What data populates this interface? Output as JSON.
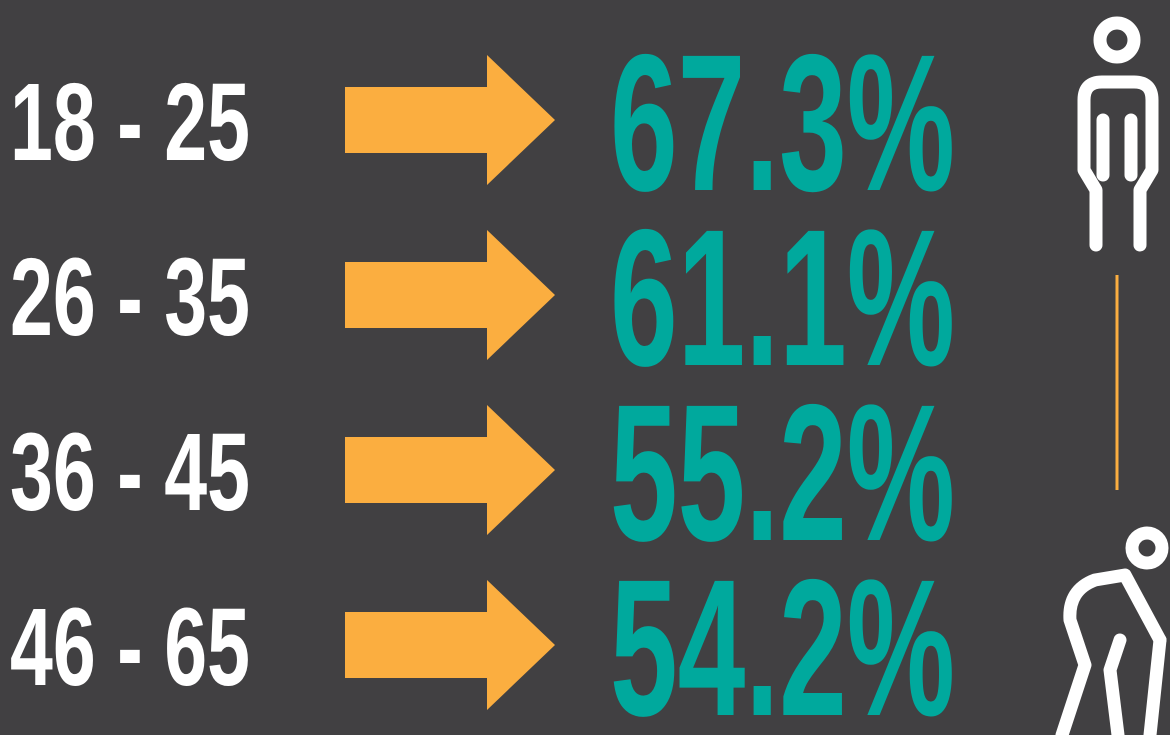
{
  "rows": [
    {
      "range": "18 - 25",
      "share": "67.3%"
    },
    {
      "range": "26 - 35",
      "share": "61.1%"
    },
    {
      "range": "36 - 45",
      "share": "55.2%"
    },
    {
      "range": "46 - 65",
      "share": "54.2%"
    }
  ]
}
